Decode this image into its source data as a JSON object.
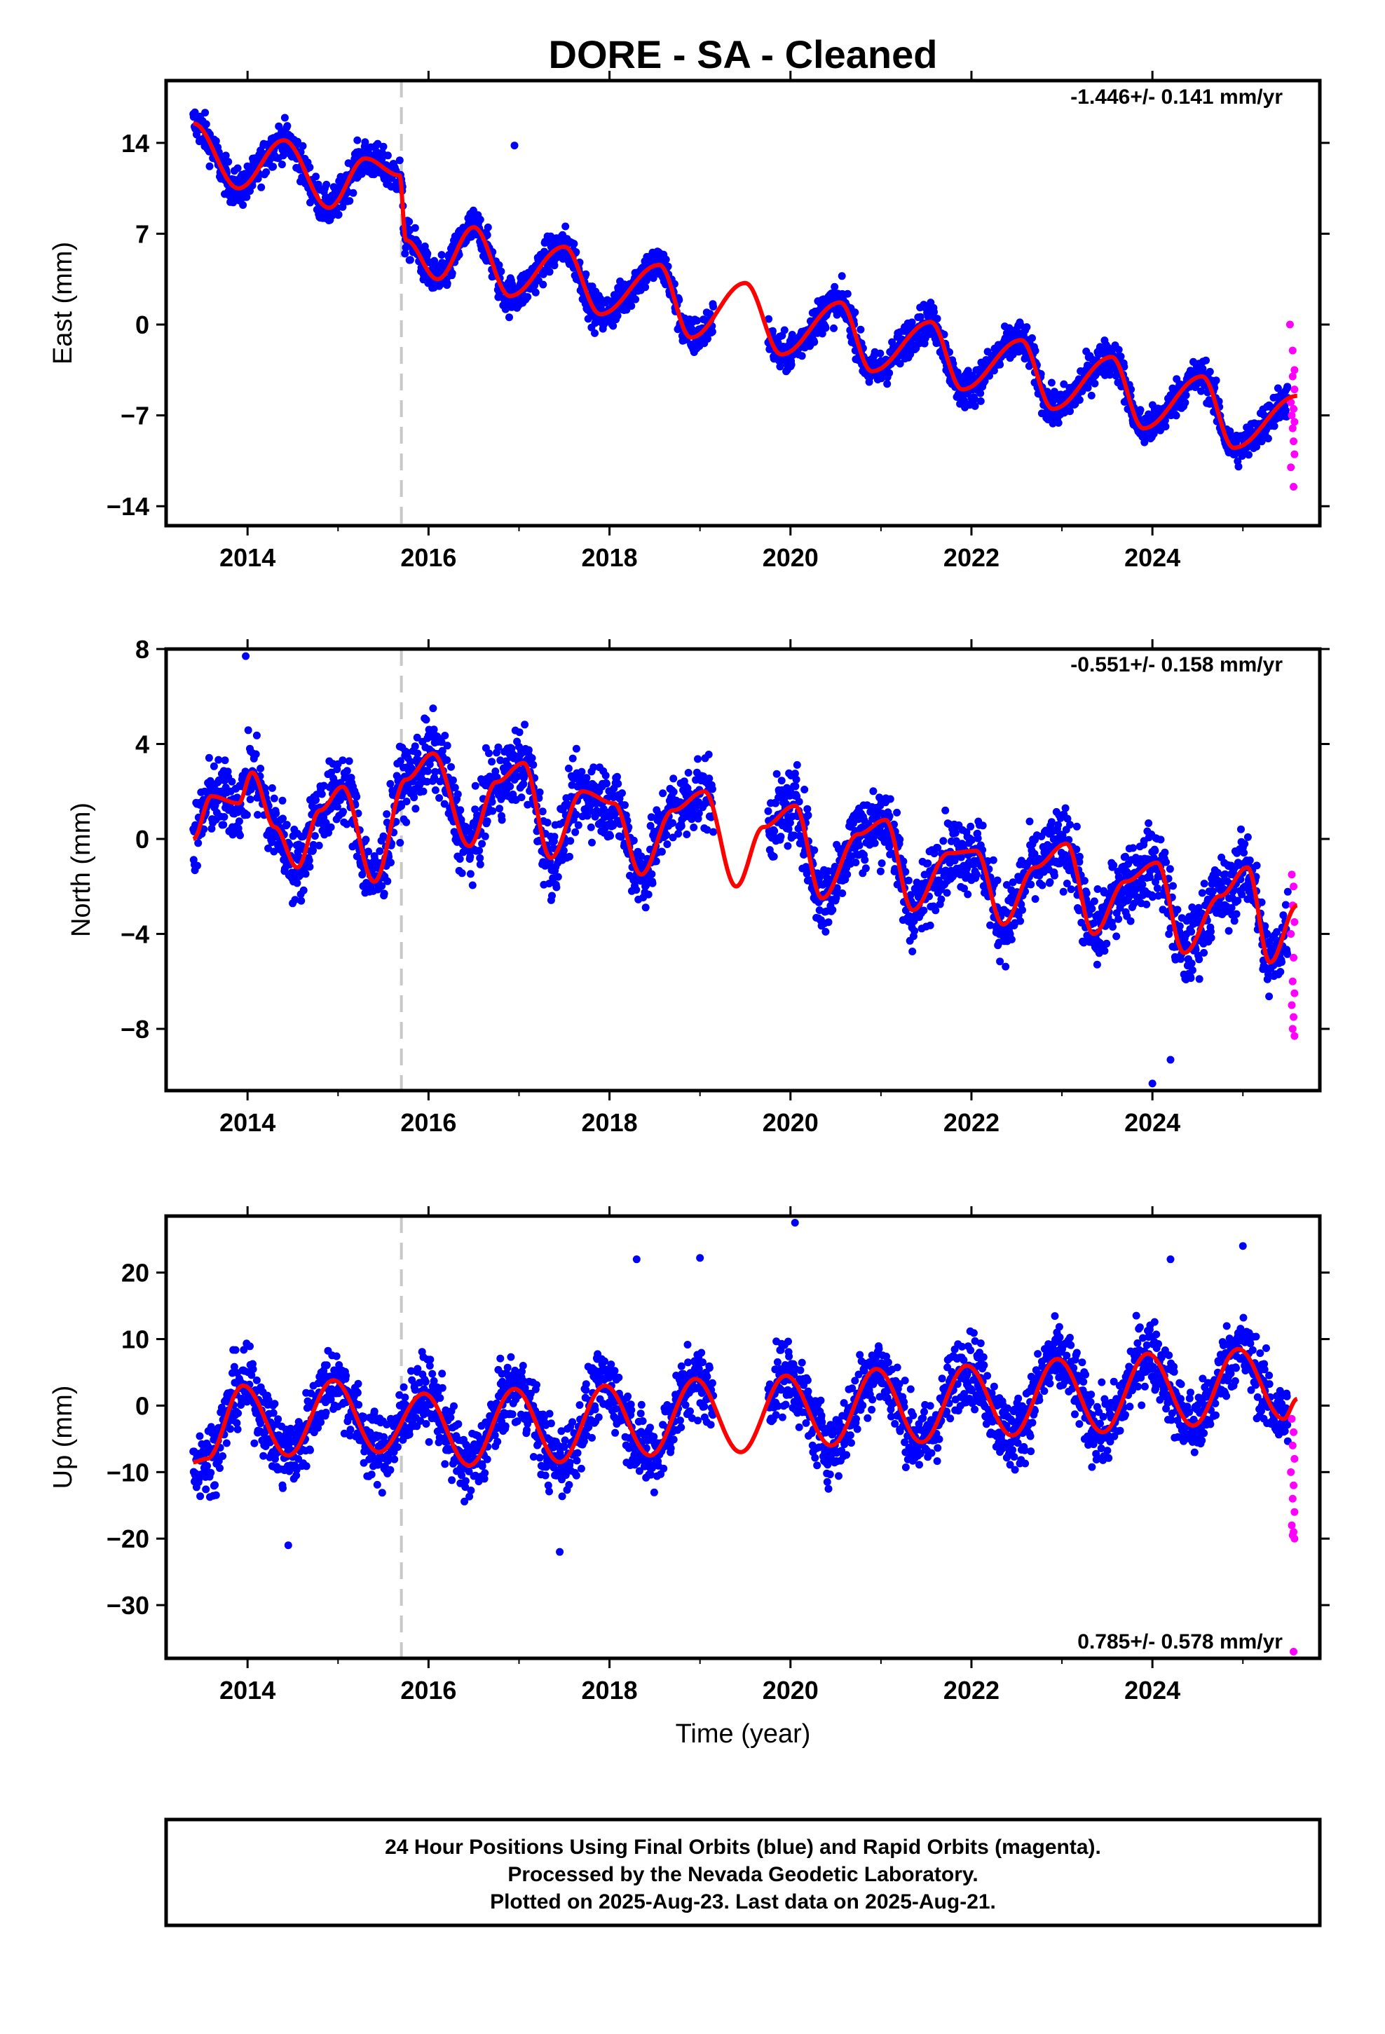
{
  "title": "DORE  - SA - Cleaned",
  "xlabel": "Time (year)",
  "footer": [
    "24 Hour Positions Using Final Orbits (blue) and Rapid Orbits (magenta).",
    "Processed by the Nevada Geodetic Laboratory.",
    "Plotted on 2025-Aug-23. Last data on 2025-Aug-21."
  ],
  "colors": {
    "final": "#0000ff",
    "rapid": "#ff00ff",
    "model": "#ff0000",
    "event_line": "#c8c8c8",
    "frame": "#000000"
  },
  "chart_data": [
    {
      "type": "scatter",
      "ylabel": "East (mm)",
      "rate_label": "-1.446+/- 0.141 mm/yr",
      "xlim": [
        2013.1,
        2025.85
      ],
      "ylim": [
        -15.5,
        18.8
      ],
      "xticks": [
        2014,
        2016,
        2018,
        2020,
        2022,
        2024
      ],
      "yticks": [
        14,
        7,
        0,
        -7,
        -14
      ],
      "event_line_x": 2015.7,
      "model": {
        "x": [
          2013.4,
          2013.9,
          2014.4,
          2014.9,
          2015.3,
          2015.68,
          2015.75,
          2016.1,
          2016.5,
          2016.9,
          2017.5,
          2017.9,
          2018.55,
          2018.9,
          2019.5,
          2019.9,
          2020.55,
          2020.9,
          2021.55,
          2021.9,
          2022.55,
          2022.9,
          2023.55,
          2023.9,
          2024.55,
          2024.9,
          2025.6
        ],
        "y": [
          15.5,
          10.5,
          14.2,
          9.0,
          12.8,
          11.5,
          6.5,
          3.5,
          7.5,
          2.2,
          6.0,
          0.8,
          4.6,
          -1.0,
          3.2,
          -2.3,
          1.7,
          -3.6,
          0.2,
          -5.0,
          -1.2,
          -6.5,
          -2.5,
          -8.0,
          -4.0,
          -9.5,
          -5.5
        ]
      },
      "rapid": {
        "x": [
          2025.52,
          2025.55,
          2025.57,
          2025.55,
          2025.57,
          2025.53,
          2025.56,
          2025.54,
          2025.57,
          2025.55,
          2025.56,
          2025.57,
          2025.53,
          2025.56
        ],
        "y": [
          0.0,
          -2.0,
          -3.5,
          -4.0,
          -5.0,
          -6.0,
          -6.5,
          -7.0,
          -7.5,
          -8.0,
          -9.0,
          -10.0,
          -11.0,
          -12.5
        ]
      },
      "noise": 1.2,
      "outliers": {
        "x": [
          2016.95
        ],
        "y": [
          13.8
        ]
      }
    },
    {
      "type": "scatter",
      "ylabel": "North (mm)",
      "rate_label": "-0.551+/- 0.158 mm/yr",
      "xlim": [
        2013.1,
        2025.85
      ],
      "ylim": [
        -10.6,
        8.0
      ],
      "xticks": [
        2014,
        2016,
        2018,
        2020,
        2022,
        2024
      ],
      "yticks": [
        8,
        4,
        0,
        -4,
        -8
      ],
      "event_line_x": 2015.7,
      "model": {
        "x": [
          2013.4,
          2013.6,
          2013.9,
          2014.05,
          2014.3,
          2014.55,
          2014.8,
          2015.05,
          2015.4,
          2015.75,
          2016.05,
          2016.45,
          2016.75,
          2017.05,
          2017.35,
          2017.7,
          2018.05,
          2018.35,
          2018.7,
          2019.05,
          2019.4,
          2019.7,
          2020.05,
          2020.35,
          2020.75,
          2021.05,
          2021.35,
          2021.75,
          2022.05,
          2022.35,
          2022.7,
          2023.05,
          2023.35,
          2023.7,
          2024.05,
          2024.35,
          2024.75,
          2025.05,
          2025.3,
          2025.6
        ],
        "y": [
          0.0,
          1.8,
          1.5,
          2.8,
          0.5,
          -1.2,
          1.2,
          2.2,
          -1.8,
          2.5,
          3.6,
          -0.3,
          2.4,
          3.2,
          -0.8,
          2.0,
          1.5,
          -1.5,
          1.2,
          2.0,
          -2.0,
          0.5,
          1.4,
          -2.5,
          0.2,
          0.8,
          -3.0,
          -0.6,
          -0.5,
          -3.6,
          -1.2,
          -0.2,
          -4.0,
          -1.8,
          -1.0,
          -4.8,
          -2.4,
          -1.2,
          -5.2,
          -2.8
        ]
      },
      "rapid": {
        "x": [
          2025.54,
          2025.56,
          2025.55,
          2025.57,
          2025.53,
          2025.56,
          2025.55,
          2025.57,
          2025.54,
          2025.56,
          2025.55,
          2025.57
        ],
        "y": [
          -1.5,
          -2.0,
          -2.8,
          -3.5,
          -4.0,
          -5.0,
          -6.0,
          -6.5,
          -7.0,
          -7.5,
          -8.0,
          -8.3
        ]
      },
      "noise": 1.3,
      "outliers": {
        "x": [
          2013.98,
          2024.0,
          2024.2
        ],
        "y": [
          7.7,
          -10.3,
          -9.3
        ]
      }
    },
    {
      "type": "scatter",
      "ylabel": "Up (mm)",
      "rate_label": "0.785+/- 0.578 mm/yr",
      "xlim": [
        2013.1,
        2025.85
      ],
      "ylim": [
        -38.0,
        28.5
      ],
      "xticks": [
        2014,
        2016,
        2018,
        2020,
        2022,
        2024
      ],
      "yticks": [
        20,
        10,
        0,
        -10,
        -20,
        -30
      ],
      "event_line_x": 2015.7,
      "model": {
        "x": [
          2013.4,
          2013.55,
          2013.95,
          2014.45,
          2014.95,
          2015.45,
          2015.95,
          2016.45,
          2016.95,
          2017.45,
          2017.95,
          2018.45,
          2018.95,
          2019.45,
          2019.95,
          2020.45,
          2020.95,
          2021.45,
          2021.95,
          2022.45,
          2022.95,
          2023.45,
          2023.95,
          2024.45,
          2024.95,
          2025.45,
          2025.6
        ],
        "y": [
          -8.5,
          -8.0,
          3.0,
          -7.5,
          3.8,
          -7.0,
          1.8,
          -9.0,
          2.5,
          -8.5,
          3.0,
          -7.5,
          4.0,
          -7.0,
          4.5,
          -6.0,
          5.5,
          -5.5,
          6.0,
          -4.5,
          7.0,
          -4.0,
          7.8,
          -3.0,
          8.5,
          -2.0,
          1.0
        ]
      },
      "rapid": {
        "x": [
          2025.54,
          2025.56,
          2025.55,
          2025.57,
          2025.53,
          2025.56,
          2025.55,
          2025.57,
          2025.54,
          2025.56,
          2025.55,
          2025.57,
          2025.56
        ],
        "y": [
          -2.0,
          -4.0,
          -6.0,
          -8.0,
          -10.0,
          -12.0,
          -14.0,
          -16.0,
          -18.0,
          -19.0,
          -19.5,
          -20.0,
          -37.0
        ]
      },
      "noise": 4.5,
      "outliers": {
        "x": [
          2020.05,
          2018.3,
          2019.0,
          2024.2,
          2025.0,
          2014.45,
          2017.45
        ],
        "y": [
          27.5,
          22.0,
          22.2,
          22.0,
          24.0,
          -21.0,
          -22.0
        ]
      }
    }
  ]
}
